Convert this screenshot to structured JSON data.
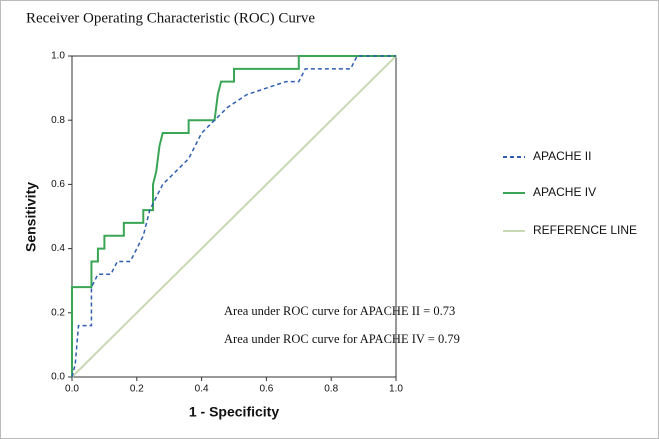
{
  "chart_data": {
    "type": "line",
    "title": "Receiver Operating Characteristic (ROC) Curve",
    "x_label": "1 - Specificity",
    "y_label": "Sensitivity",
    "xlim": [
      0,
      1
    ],
    "ylim": [
      0,
      1
    ],
    "xticks": [
      {
        "value": 0,
        "label": "0.0"
      },
      0.2,
      0.4,
      0.6,
      0.8,
      {
        "value": 1,
        "label": "1.0"
      }
    ],
    "yticks": [
      {
        "value": 0,
        "label": "0.0"
      },
      0.2,
      0.4,
      0.6,
      0.8,
      {
        "value": 1,
        "label": "1.0"
      }
    ],
    "legend_position": "right",
    "series": [
      {
        "name": "APACHE II",
        "color": "#2f5fae",
        "line_style": "dashed",
        "x": [
          0,
          0.01,
          0.02,
          0.06,
          0.06,
          0.08,
          0.12,
          0.14,
          0.18,
          0.2,
          0.22,
          0.24,
          0.26,
          0.28,
          0.32,
          0.36,
          0.4,
          0.44,
          0.48,
          0.54,
          0.6,
          0.66,
          0.7,
          0.72,
          0.86,
          0.88,
          1
        ],
        "values": [
          0,
          0.04,
          0.16,
          0.16,
          0.28,
          0.32,
          0.32,
          0.36,
          0.36,
          0.4,
          0.44,
          0.52,
          0.56,
          0.6,
          0.64,
          0.68,
          0.76,
          0.8,
          0.84,
          0.88,
          0.9,
          0.92,
          0.92,
          0.96,
          0.96,
          1,
          1
        ]
      },
      {
        "name": "APACHE IV",
        "color": "#3aa655",
        "line_style": "solid",
        "x": [
          0,
          0,
          0.06,
          0.06,
          0.08,
          0.08,
          0.1,
          0.1,
          0.16,
          0.16,
          0.22,
          0.22,
          0.25,
          0.25,
          0.26,
          0.27,
          0.28,
          0.36,
          0.36,
          0.44,
          0.45,
          0.46,
          0.5,
          0.5,
          0.7,
          0.7,
          1
        ],
        "values": [
          0,
          0.28,
          0.28,
          0.36,
          0.36,
          0.4,
          0.4,
          0.44,
          0.44,
          0.48,
          0.48,
          0.52,
          0.52,
          0.6,
          0.64,
          0.72,
          0.76,
          0.76,
          0.8,
          0.8,
          0.88,
          0.92,
          0.92,
          0.96,
          0.96,
          1,
          1
        ]
      },
      {
        "name": "REFERENCE LINE",
        "color": "#c9d8b4",
        "line_style": "solid",
        "x": [
          0,
          1
        ],
        "values": [
          0,
          1
        ]
      }
    ],
    "annotations": [
      "Area under ROC curve for APACHE II = 0.73",
      "Area under ROC curve for APACHE IV = 0.79"
    ]
  }
}
